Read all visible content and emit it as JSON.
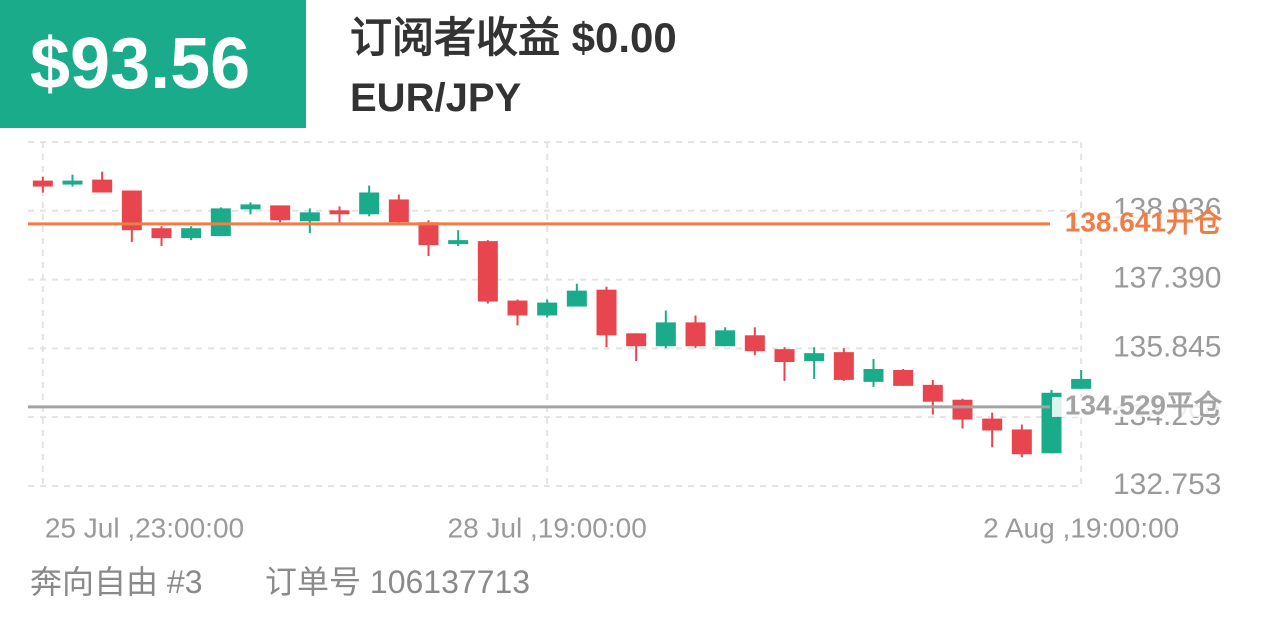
{
  "header": {
    "amount": "$93.56",
    "subscriber_earnings": "订阅者收益 $0.00",
    "symbol": "EUR/JPY"
  },
  "footer": {
    "strategy": "奔向自由 #3",
    "order": "订单号 106137713"
  },
  "chart_data": {
    "type": "candlestick",
    "categories": [
      "25 Jul ,23:00:00",
      null,
      null,
      null,
      null,
      null,
      null,
      null,
      null,
      null,
      null,
      null,
      null,
      null,
      null,
      null,
      null,
      "28 Jul ,19:00:00",
      null,
      null,
      null,
      null,
      null,
      null,
      null,
      null,
      null,
      null,
      null,
      null,
      null,
      null,
      null,
      null,
      null,
      "2 Aug ,19:00:00"
    ],
    "open": [
      139.613,
      139.524,
      139.635,
      139.39,
      138.544,
      138.321,
      138.366,
      138.967,
      139.056,
      138.7,
      138.945,
      138.856,
      139.19,
      138.677,
      138.187,
      138.254,
      136.918,
      136.584,
      136.784,
      137.163,
      136.183,
      135.893,
      136.428,
      135.893,
      136.138,
      135.827,
      135.559,
      135.76,
      135.092,
      135.359,
      135.025,
      134.691,
      134.267,
      134.023,
      133.488,
      134.936
    ],
    "high": [
      139.702,
      139.746,
      139.813,
      139.39,
      138.588,
      138.588,
      139.011,
      139.123,
      139.056,
      138.989,
      139.034,
      139.501,
      139.301,
      138.722,
      138.499,
      138.276,
      136.94,
      136.94,
      137.296,
      137.23,
      136.183,
      136.695,
      136.584,
      136.317,
      136.317,
      135.871,
      135.871,
      135.849,
      135.604,
      135.381,
      135.136,
      134.713,
      134.401,
      134.134,
      134.913,
      135.359
    ],
    "low": [
      139.346,
      139.479,
      139.346,
      138.232,
      138.143,
      138.276,
      138.366,
      138.856,
      138.677,
      138.432,
      138.633,
      138.811,
      138.633,
      137.92,
      138.143,
      136.851,
      136.361,
      136.539,
      136.784,
      135.871,
      135.559,
      135.849,
      135.849,
      135.893,
      135.693,
      135.114,
      135.158,
      135.114,
      134.98,
      135.002,
      134.357,
      134.045,
      133.622,
      133.399,
      133.488,
      134.936
    ],
    "close": [
      139.479,
      139.613,
      139.346,
      138.499,
      138.321,
      138.544,
      138.989,
      139.078,
      138.722,
      138.9,
      138.856,
      139.346,
      138.677,
      138.165,
      138.276,
      136.896,
      136.584,
      136.873,
      137.141,
      136.138,
      135.893,
      136.428,
      135.893,
      136.25,
      135.782,
      135.537,
      135.737,
      135.136,
      135.381,
      135.002,
      134.646,
      134.245,
      134.0,
      133.466,
      134.847,
      135.158
    ],
    "up_color": "#1aab8a",
    "down_color": "#e8464e",
    "ylim": [
      132.753,
      140.48
    ],
    "yticks": [
      132.753,
      134.299,
      135.845,
      {
        "value": 137.39,
        "label": "137.390"
      },
      138.936
    ],
    "grid": true,
    "lines": [
      {
        "value": 138.641,
        "label": "138.641开仓",
        "color": "#f07d45"
      },
      {
        "value": 134.529,
        "label": "134.529平仓",
        "color": "#a3a3a3"
      }
    ]
  }
}
